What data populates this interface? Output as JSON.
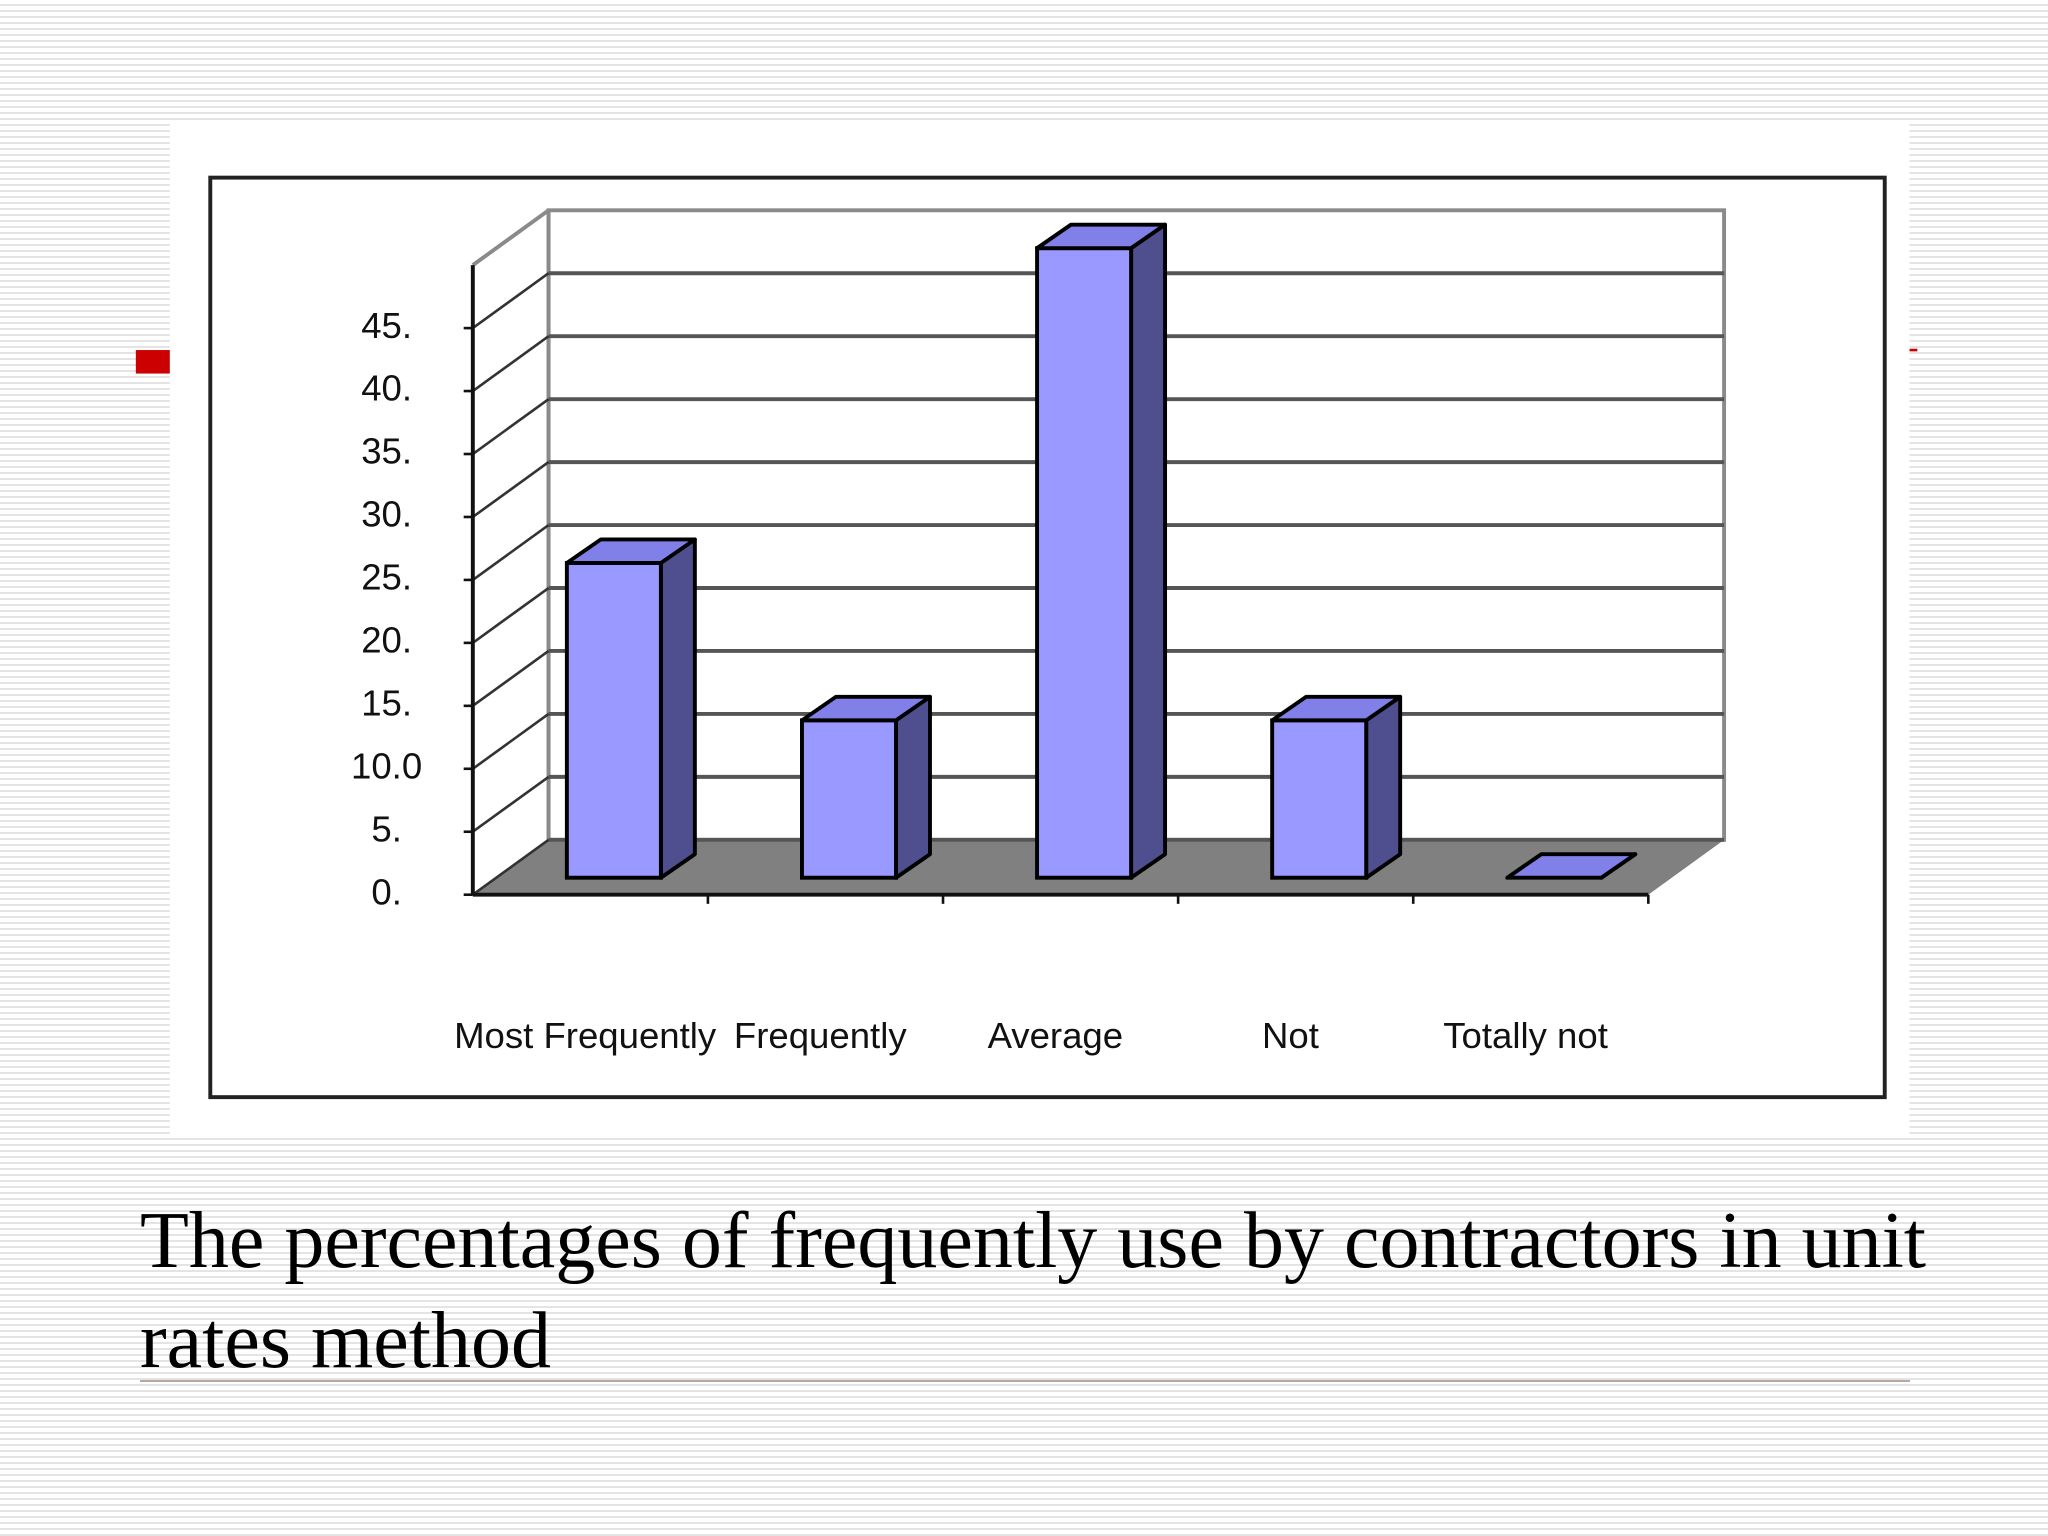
{
  "chart_data": {
    "type": "bar3d",
    "title": "The percentages of frequently use by contractors in unit rates method",
    "categories": [
      "Most Frequently",
      "Frequently",
      "Average",
      "Not",
      "Totally not"
    ],
    "values": [
      25,
      12.5,
      50,
      12.5,
      0
    ],
    "color": "#9999ff",
    "ylim": [
      0,
      50
    ],
    "yticks": [
      {
        "value": 0,
        "label": "0."
      },
      {
        "value": 5,
        "label": "5."
      },
      {
        "value": 10,
        "label": "10.0"
      },
      {
        "value": 15,
        "label": "15."
      },
      {
        "value": 20,
        "label": "20."
      },
      {
        "value": 25,
        "label": "25."
      },
      {
        "value": 30,
        "label": "30."
      },
      {
        "value": 35,
        "label": "35."
      },
      {
        "value": 40,
        "label": "40."
      },
      {
        "value": 45,
        "label": "45."
      }
    ],
    "grid": true
  }
}
